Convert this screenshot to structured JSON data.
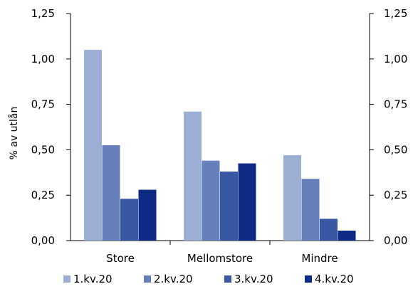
{
  "chart_data": {
    "type": "bar",
    "categories": [
      "Store",
      "Mellomstore",
      "Mindre"
    ],
    "series": [
      {
        "name": "1.kv.20",
        "values": [
          1.05,
          0.71,
          0.47
        ],
        "color": "#9baed3"
      },
      {
        "name": "2.kv.20",
        "values": [
          0.525,
          0.44,
          0.34
        ],
        "color": "#6680bb"
      },
      {
        "name": "3.kv.20",
        "values": [
          0.23,
          0.38,
          0.12
        ],
        "color": "#3858a3"
      },
      {
        "name": "4.kv.20",
        "values": [
          0.28,
          0.425,
          0.055
        ],
        "color": "#0d2a85"
      }
    ],
    "ylabel": "% av utlån",
    "ylim": [
      0,
      1.25
    ],
    "yticks": [
      "0,00",
      "0,25",
      "0,50",
      "0,75",
      "1,00",
      "1,25"
    ],
    "grid": false,
    "legend": "bottom",
    "right_axis": true
  }
}
